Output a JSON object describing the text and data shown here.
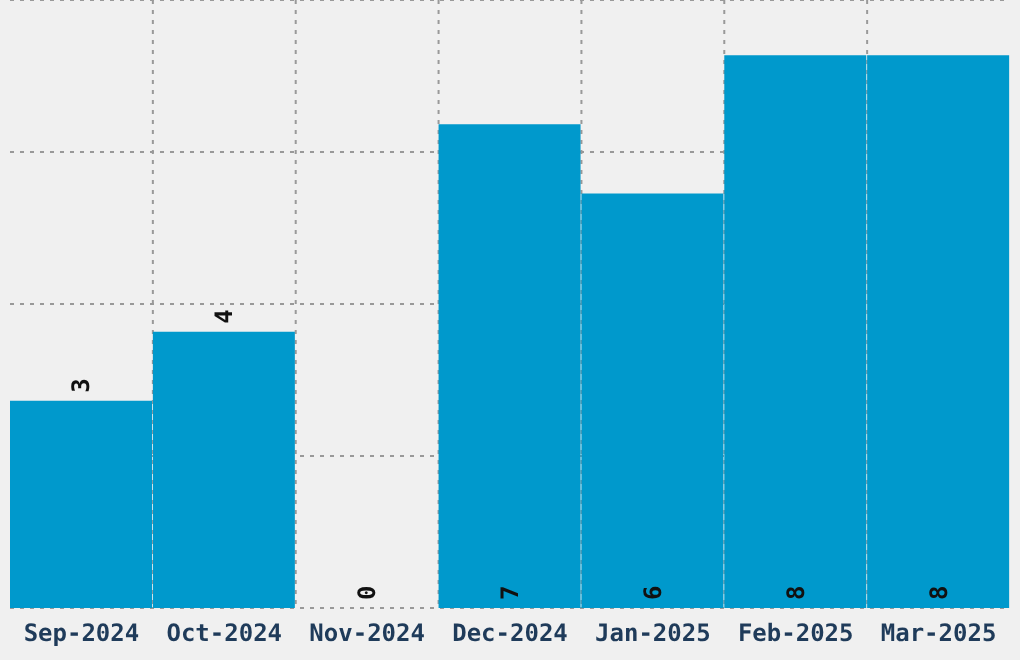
{
  "chart_data": {
    "type": "bar",
    "categories": [
      "Sep-2024",
      "Oct-2024",
      "Nov-2024",
      "Dec-2024",
      "Jan-2025",
      "Feb-2025",
      "Mar-2025"
    ],
    "values": [
      3,
      4,
      0,
      7,
      6,
      8,
      8
    ],
    "color": "#0099cc",
    "ylim": [
      0,
      8.8
    ],
    "yticks": [
      {
        "value": 0,
        "label": null
      },
      {
        "value": 2.2,
        "label": null
      },
      {
        "value": 4.4,
        "label": null
      },
      {
        "value": 6.6,
        "label": null
      },
      {
        "value": 8.8,
        "label": null
      }
    ],
    "grid": true,
    "tick_labels": "x",
    "data_labels": true
  }
}
